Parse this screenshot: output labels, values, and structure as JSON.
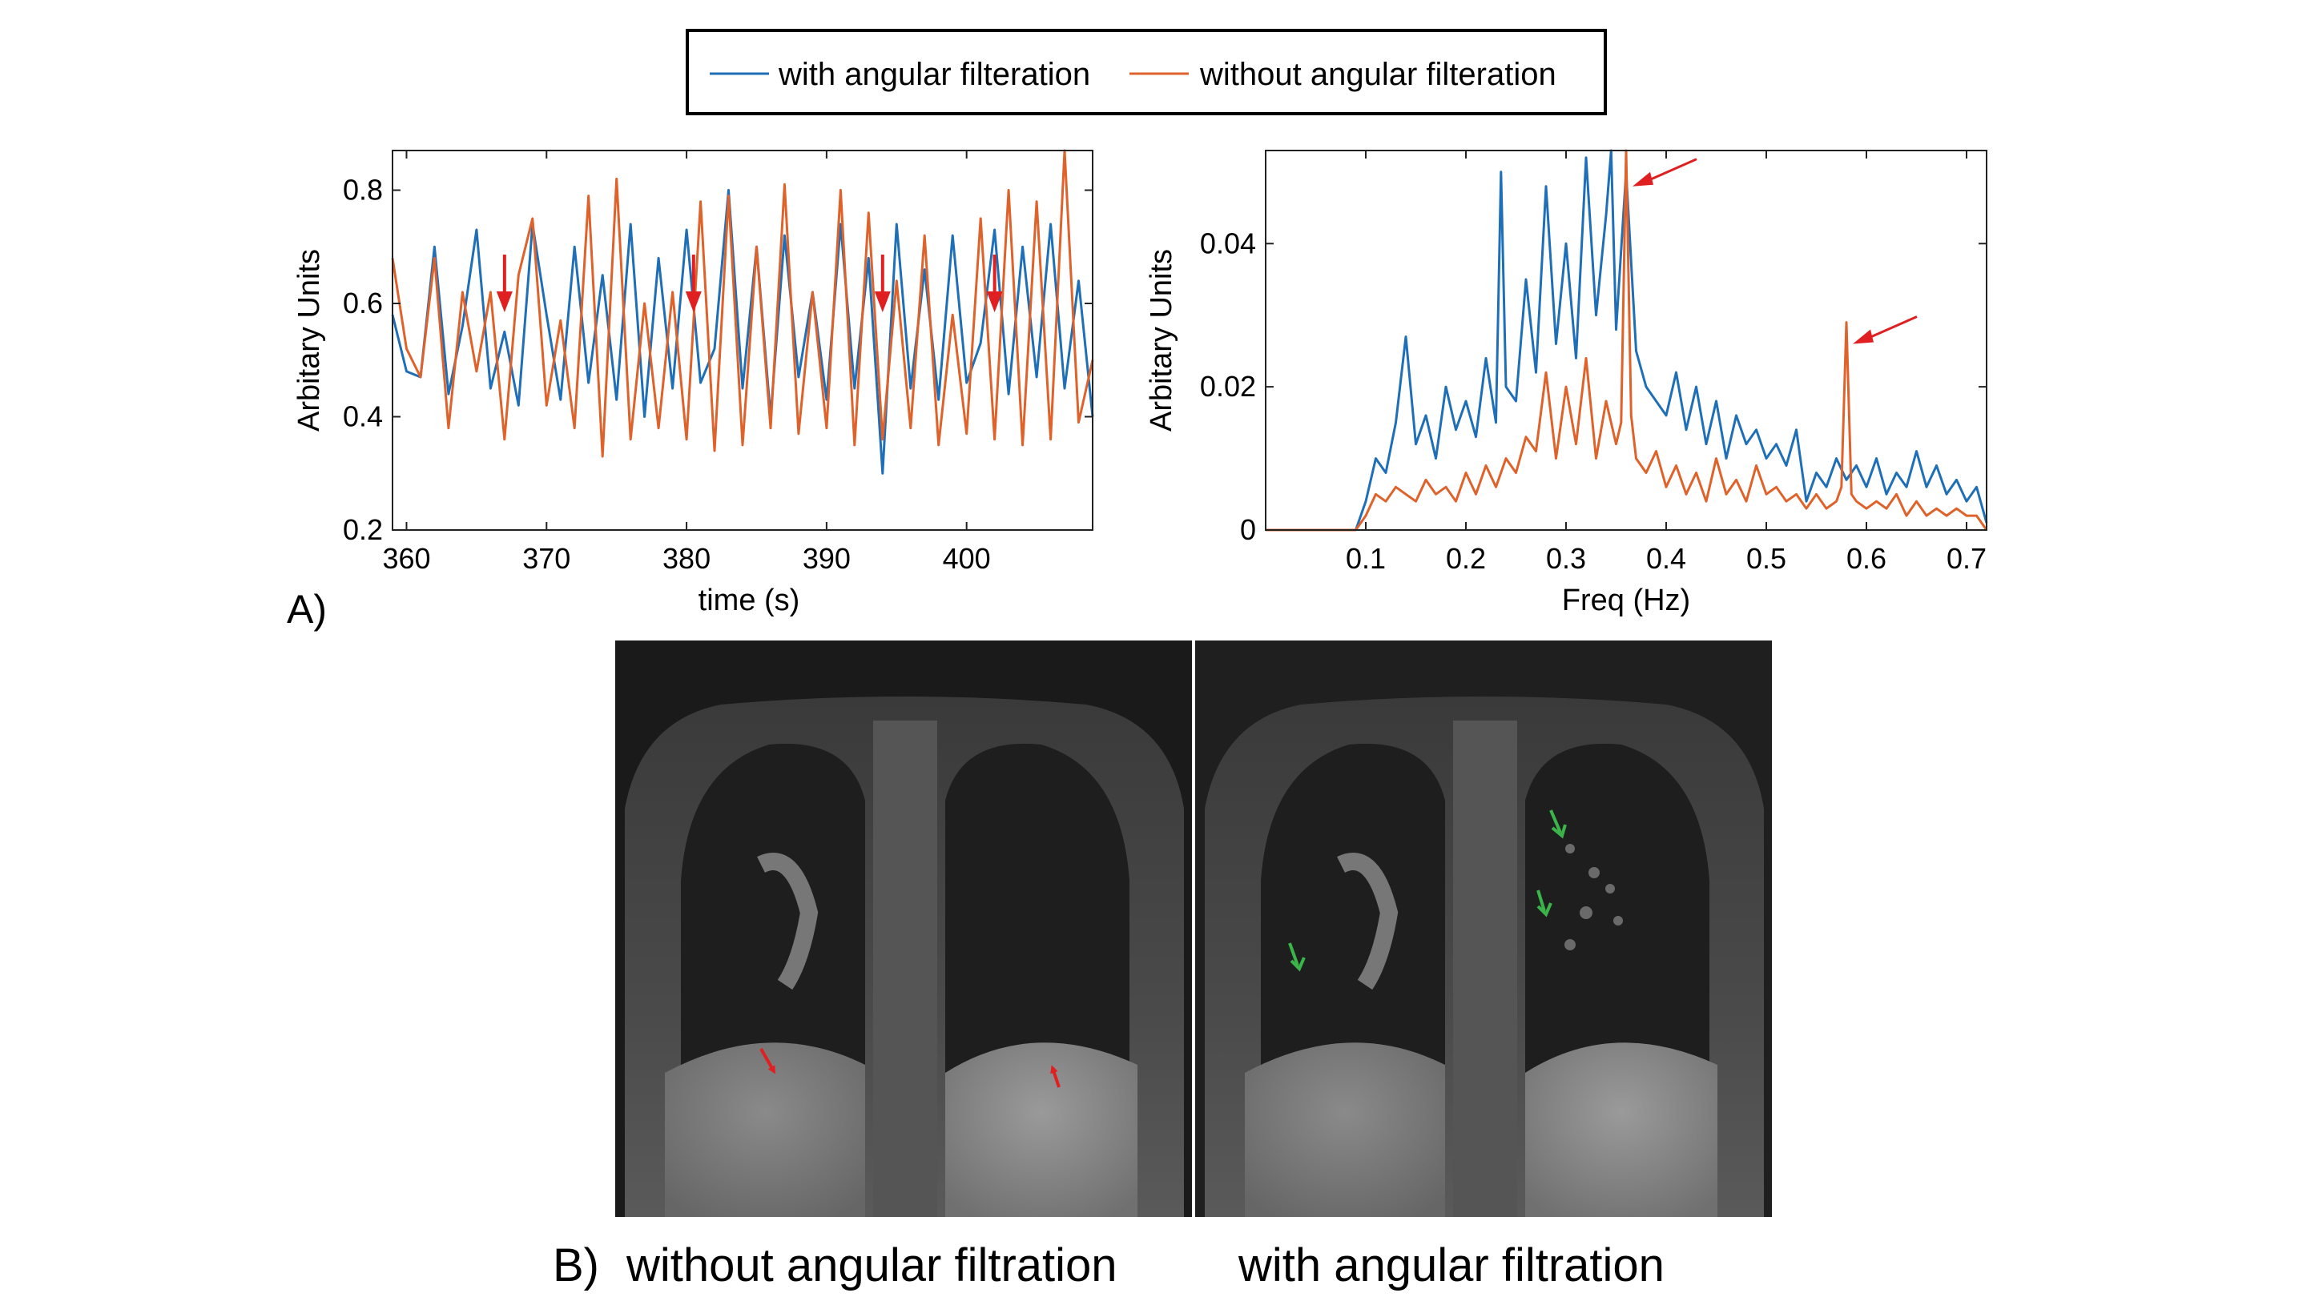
{
  "legend": {
    "items": [
      {
        "label": "with angular filteration",
        "color": "#1f6fb8"
      },
      {
        "label": "without angular filteration",
        "color": "#e0622b"
      }
    ]
  },
  "panel_a_label": "A)",
  "panel_b_label": "B)",
  "mri_captions": {
    "left": "without angular filtration",
    "right": "with angular filtration"
  },
  "colors": {
    "blue": "#1f6fb8",
    "orange": "#e0622b",
    "arrow_red": "#e02020",
    "arrow_green": "#3bb54a"
  },
  "chart_data": [
    {
      "type": "line",
      "xlabel": "time (s)",
      "ylabel": "Arbitary Units",
      "xlim": [
        359,
        409
      ],
      "ylim": [
        0.2,
        0.87
      ],
      "xticks": [
        "360",
        "370",
        "380",
        "390",
        "400"
      ],
      "xtick_values": [
        360,
        370,
        380,
        390,
        400
      ],
      "yticks": [
        "0.2",
        "0.4",
        "0.6",
        "0.8"
      ],
      "ytick_values": [
        0.2,
        0.4,
        0.6,
        0.8
      ],
      "annotation_arrows_at_x": [
        367,
        380.5,
        394,
        402
      ],
      "series": [
        {
          "name": "with angular filteration",
          "color": "#1f6fb8",
          "x": [
            359,
            360,
            361,
            362,
            363,
            364,
            365,
            366,
            367,
            368,
            369,
            370,
            371,
            372,
            373,
            374,
            375,
            376,
            377,
            378,
            379,
            380,
            381,
            382,
            383,
            384,
            385,
            386,
            387,
            388,
            389,
            390,
            391,
            392,
            393,
            394,
            395,
            396,
            397,
            398,
            399,
            400,
            401,
            402,
            403,
            404,
            405,
            406,
            407,
            408,
            409
          ],
          "values": [
            0.58,
            0.48,
            0.47,
            0.7,
            0.44,
            0.56,
            0.73,
            0.45,
            0.55,
            0.42,
            0.74,
            0.58,
            0.43,
            0.7,
            0.46,
            0.65,
            0.43,
            0.74,
            0.4,
            0.68,
            0.45,
            0.73,
            0.46,
            0.52,
            0.8,
            0.45,
            0.7,
            0.4,
            0.72,
            0.47,
            0.62,
            0.43,
            0.74,
            0.45,
            0.68,
            0.3,
            0.74,
            0.45,
            0.66,
            0.43,
            0.72,
            0.46,
            0.53,
            0.73,
            0.44,
            0.7,
            0.47,
            0.74,
            0.45,
            0.64,
            0.4
          ]
        },
        {
          "name": "without angular filteration",
          "color": "#e0622b",
          "x": [
            359,
            360,
            361,
            362,
            363,
            364,
            365,
            366,
            367,
            368,
            369,
            370,
            371,
            372,
            373,
            374,
            375,
            376,
            377,
            378,
            379,
            380,
            381,
            382,
            383,
            384,
            385,
            386,
            387,
            388,
            389,
            390,
            391,
            392,
            393,
            394,
            395,
            396,
            397,
            398,
            399,
            400,
            401,
            402,
            403,
            404,
            405,
            406,
            407,
            408,
            409
          ],
          "values": [
            0.68,
            0.52,
            0.47,
            0.68,
            0.38,
            0.62,
            0.48,
            0.62,
            0.36,
            0.65,
            0.75,
            0.42,
            0.57,
            0.38,
            0.79,
            0.33,
            0.82,
            0.36,
            0.6,
            0.38,
            0.62,
            0.36,
            0.78,
            0.34,
            0.79,
            0.35,
            0.7,
            0.38,
            0.81,
            0.37,
            0.62,
            0.38,
            0.8,
            0.35,
            0.76,
            0.36,
            0.64,
            0.38,
            0.72,
            0.35,
            0.58,
            0.37,
            0.75,
            0.36,
            0.8,
            0.35,
            0.78,
            0.36,
            0.87,
            0.39,
            0.5
          ]
        }
      ]
    },
    {
      "type": "line",
      "xlabel": "Freq (Hz)",
      "ylabel": "Arbitary Units",
      "xlim": [
        0,
        0.72
      ],
      "ylim": [
        0,
        0.053
      ],
      "xticks": [
        "0.1",
        "0.2",
        "0.3",
        "0.4",
        "0.5",
        "0.6",
        "0.7"
      ],
      "xtick_values": [
        0.1,
        0.2,
        0.3,
        0.4,
        0.5,
        0.6,
        0.7
      ],
      "yticks": [
        "0",
        "0.02",
        "0.04"
      ],
      "ytick_values": [
        0,
        0.02,
        0.04
      ],
      "annotation_arrows_at": [
        [
          0.36,
          0.048
        ],
        [
          0.58,
          0.026
        ]
      ],
      "series": [
        {
          "name": "with angular filteration",
          "color": "#1f6fb8",
          "x": [
            0.0,
            0.02,
            0.04,
            0.06,
            0.08,
            0.09,
            0.1,
            0.11,
            0.12,
            0.13,
            0.14,
            0.15,
            0.16,
            0.17,
            0.18,
            0.19,
            0.2,
            0.21,
            0.22,
            0.23,
            0.235,
            0.24,
            0.25,
            0.26,
            0.27,
            0.28,
            0.29,
            0.3,
            0.31,
            0.32,
            0.33,
            0.34,
            0.345,
            0.35,
            0.36,
            0.37,
            0.38,
            0.39,
            0.4,
            0.41,
            0.42,
            0.43,
            0.44,
            0.45,
            0.46,
            0.47,
            0.48,
            0.49,
            0.5,
            0.51,
            0.52,
            0.53,
            0.54,
            0.55,
            0.56,
            0.57,
            0.58,
            0.59,
            0.6,
            0.61,
            0.62,
            0.63,
            0.64,
            0.65,
            0.66,
            0.67,
            0.68,
            0.69,
            0.7,
            0.71,
            0.72
          ],
          "values": [
            0.0,
            0.0,
            0.0,
            0.0,
            0.0,
            0.0,
            0.004,
            0.01,
            0.008,
            0.015,
            0.027,
            0.012,
            0.016,
            0.01,
            0.02,
            0.014,
            0.018,
            0.013,
            0.024,
            0.015,
            0.05,
            0.02,
            0.018,
            0.035,
            0.022,
            0.048,
            0.026,
            0.04,
            0.024,
            0.052,
            0.03,
            0.044,
            0.053,
            0.028,
            0.05,
            0.025,
            0.02,
            0.018,
            0.016,
            0.022,
            0.014,
            0.02,
            0.012,
            0.018,
            0.01,
            0.016,
            0.012,
            0.014,
            0.01,
            0.012,
            0.009,
            0.014,
            0.004,
            0.008,
            0.006,
            0.01,
            0.007,
            0.009,
            0.006,
            0.01,
            0.005,
            0.008,
            0.006,
            0.011,
            0.006,
            0.009,
            0.005,
            0.007,
            0.004,
            0.006,
            0.001
          ]
        },
        {
          "name": "without angular filteration",
          "color": "#e0622b",
          "x": [
            0.0,
            0.02,
            0.04,
            0.06,
            0.08,
            0.09,
            0.1,
            0.11,
            0.12,
            0.13,
            0.14,
            0.15,
            0.16,
            0.17,
            0.18,
            0.19,
            0.2,
            0.21,
            0.22,
            0.23,
            0.24,
            0.25,
            0.26,
            0.27,
            0.28,
            0.29,
            0.3,
            0.31,
            0.32,
            0.33,
            0.34,
            0.35,
            0.355,
            0.36,
            0.365,
            0.37,
            0.38,
            0.39,
            0.4,
            0.41,
            0.42,
            0.43,
            0.44,
            0.45,
            0.46,
            0.47,
            0.48,
            0.49,
            0.5,
            0.51,
            0.52,
            0.53,
            0.54,
            0.55,
            0.56,
            0.57,
            0.575,
            0.58,
            0.585,
            0.59,
            0.6,
            0.61,
            0.62,
            0.63,
            0.64,
            0.65,
            0.66,
            0.67,
            0.68,
            0.69,
            0.7,
            0.71,
            0.72
          ],
          "values": [
            0.0,
            0.0,
            0.0,
            0.0,
            0.0,
            0.0,
            0.002,
            0.005,
            0.004,
            0.006,
            0.005,
            0.004,
            0.007,
            0.005,
            0.006,
            0.004,
            0.008,
            0.005,
            0.009,
            0.006,
            0.01,
            0.008,
            0.013,
            0.011,
            0.022,
            0.01,
            0.02,
            0.012,
            0.024,
            0.01,
            0.018,
            0.012,
            0.015,
            0.053,
            0.016,
            0.01,
            0.008,
            0.011,
            0.006,
            0.009,
            0.005,
            0.008,
            0.004,
            0.01,
            0.005,
            0.007,
            0.004,
            0.009,
            0.005,
            0.006,
            0.004,
            0.005,
            0.003,
            0.005,
            0.003,
            0.004,
            0.006,
            0.029,
            0.005,
            0.004,
            0.003,
            0.004,
            0.003,
            0.005,
            0.002,
            0.004,
            0.002,
            0.003,
            0.002,
            0.003,
            0.002,
            0.002,
            0.0
          ]
        }
      ]
    }
  ]
}
